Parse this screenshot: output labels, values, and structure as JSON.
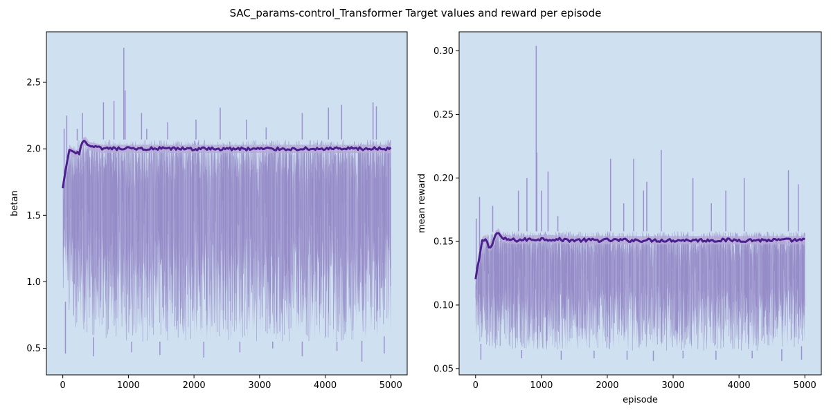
{
  "figure_title": "SAC_params-control_Transformer Target values and reward per episode",
  "colors": {
    "plot_background": "#cfe0f0",
    "envelope": "#9b8fcc",
    "mean_line": "#4b1f8c",
    "band": "#b6aad8"
  },
  "chart_data": [
    {
      "type": "line",
      "title": "",
      "xlabel": "",
      "ylabel": "betan",
      "xlim": [
        -250,
        5250
      ],
      "ylim": [
        0.3,
        2.88
      ],
      "xticks": [
        0,
        1000,
        2000,
        3000,
        4000,
        5000
      ],
      "yticks": [
        0.5,
        1.0,
        1.5,
        2.0,
        2.5
      ],
      "ytick_labels": [
        "0.5",
        "1.0",
        "1.5",
        "2.0",
        "2.5"
      ],
      "grid": false,
      "series": [
        {
          "role": "mean",
          "x": [
            0,
            50,
            100,
            150,
            200,
            250,
            300,
            350,
            400,
            600,
            1000,
            1500,
            2000,
            2500,
            3000,
            3500,
            4000,
            4500,
            5000
          ],
          "y": [
            1.7,
            1.85,
            2.0,
            1.97,
            1.96,
            1.97,
            2.05,
            2.06,
            2.02,
            2.0,
            2.0,
            2.0,
            2.0,
            2.0,
            2.0,
            2.0,
            2.0,
            2.0,
            2.0
          ]
        },
        {
          "role": "envelope-upper",
          "x": [
            0,
            100,
            300,
            500,
            1000,
            1500,
            2000,
            2500,
            3000,
            3500,
            4000,
            4500,
            5000
          ],
          "y": [
            1.75,
            2.05,
            2.07,
            2.07,
            2.07,
            2.07,
            2.07,
            2.07,
            2.07,
            2.07,
            2.07,
            2.07,
            2.07
          ]
        },
        {
          "role": "envelope-lower",
          "x": [
            0,
            100,
            300,
            500,
            1000,
            1500,
            2000,
            2500,
            3000,
            3500,
            4000,
            4500,
            5000
          ],
          "y": [
            0.95,
            0.7,
            0.6,
            0.58,
            0.55,
            0.55,
            0.55,
            0.55,
            0.55,
            0.55,
            0.55,
            0.55,
            0.6
          ]
        },
        {
          "role": "spikes",
          "x": [
            20,
            60,
            220,
            300,
            620,
            780,
            930,
            950,
            1200,
            1280,
            1600,
            2030,
            2400,
            2800,
            3100,
            3650,
            4050,
            4250,
            4730,
            4780
          ],
          "y": [
            2.15,
            2.25,
            2.15,
            2.27,
            2.35,
            2.36,
            2.76,
            2.44,
            2.27,
            2.15,
            2.2,
            2.22,
            2.31,
            2.22,
            2.16,
            2.27,
            2.31,
            2.33,
            2.35,
            2.32
          ]
        },
        {
          "role": "dips",
          "x": [
            40,
            470,
            1050,
            1480,
            2150,
            2700,
            3200,
            3650,
            4180,
            4560,
            4900
          ],
          "y": [
            0.46,
            0.44,
            0.47,
            0.45,
            0.43,
            0.47,
            0.5,
            0.44,
            0.48,
            0.4,
            0.46
          ]
        }
      ]
    },
    {
      "type": "line",
      "title": "",
      "xlabel": "episode",
      "ylabel": "mean reward",
      "xlim": [
        -250,
        5250
      ],
      "ylim": [
        0.045,
        0.315
      ],
      "xticks": [
        0,
        1000,
        2000,
        3000,
        4000,
        5000
      ],
      "yticks": [
        0.05,
        0.1,
        0.15,
        0.2,
        0.25,
        0.3
      ],
      "ytick_labels": [
        "0.05",
        "0.10",
        "0.15",
        "0.20",
        "0.25",
        "0.30"
      ],
      "grid": false,
      "series": [
        {
          "role": "mean",
          "x": [
            0,
            50,
            100,
            150,
            200,
            250,
            300,
            350,
            400,
            600,
            1000,
            1500,
            2000,
            2500,
            3000,
            3500,
            4000,
            4500,
            5000
          ],
          "y": [
            0.12,
            0.135,
            0.15,
            0.152,
            0.146,
            0.147,
            0.155,
            0.157,
            0.152,
            0.151,
            0.152,
            0.151,
            0.151,
            0.151,
            0.151,
            0.151,
            0.151,
            0.151,
            0.151
          ]
        },
        {
          "role": "envelope-upper",
          "x": [
            0,
            100,
            300,
            500,
            1000,
            1500,
            2000,
            2500,
            3000,
            3500,
            4000,
            4500,
            5000
          ],
          "y": [
            0.125,
            0.155,
            0.158,
            0.158,
            0.158,
            0.158,
            0.158,
            0.158,
            0.158,
            0.158,
            0.158,
            0.158,
            0.158
          ]
        },
        {
          "role": "envelope-lower",
          "x": [
            0,
            100,
            300,
            500,
            1000,
            1500,
            2000,
            2500,
            3000,
            3500,
            4000,
            4500,
            5000
          ],
          "y": [
            0.075,
            0.068,
            0.065,
            0.065,
            0.064,
            0.064,
            0.064,
            0.064,
            0.064,
            0.064,
            0.064,
            0.064,
            0.068
          ]
        },
        {
          "role": "spikes",
          "x": [
            10,
            60,
            260,
            650,
            780,
            920,
            930,
            1000,
            1100,
            1250,
            2050,
            2250,
            2400,
            2550,
            2600,
            2820,
            3300,
            3580,
            3800,
            4080,
            4750,
            4900
          ],
          "y": [
            0.168,
            0.185,
            0.178,
            0.19,
            0.2,
            0.304,
            0.22,
            0.19,
            0.205,
            0.17,
            0.215,
            0.18,
            0.215,
            0.19,
            0.197,
            0.222,
            0.2,
            0.18,
            0.19,
            0.2,
            0.206,
            0.195
          ]
        },
        {
          "role": "dips",
          "x": [
            80,
            700,
            1300,
            1800,
            2300,
            2700,
            3150,
            3650,
            4200,
            4650,
            4950
          ],
          "y": [
            0.057,
            0.058,
            0.057,
            0.058,
            0.057,
            0.056,
            0.058,
            0.057,
            0.058,
            0.056,
            0.057
          ]
        }
      ]
    }
  ]
}
